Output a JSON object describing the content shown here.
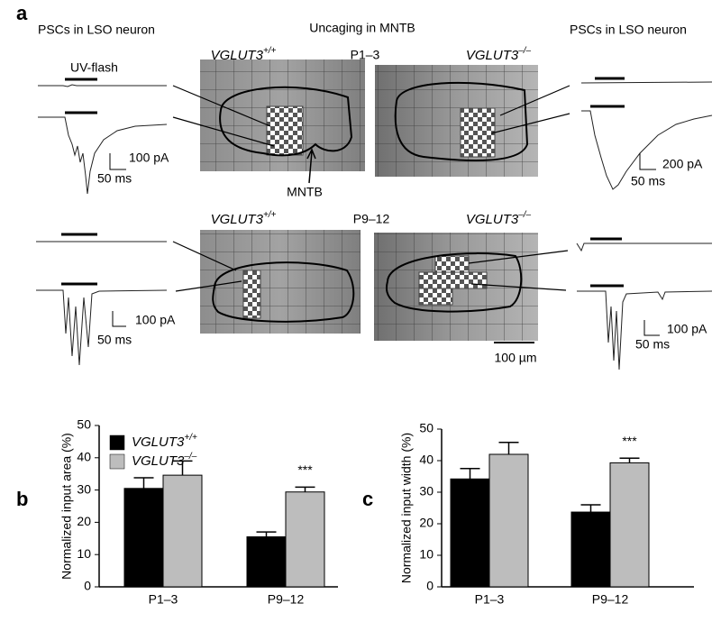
{
  "panel_a": {
    "label": "a",
    "left_title": "PSCs in LSO neuron",
    "center_title": "Uncaging in MNTB",
    "right_title": "PSCs in LSO neuron",
    "uv_flash": "UV-flash",
    "mntb": "MNTB",
    "scale_bar": "100 µm",
    "rows": [
      {
        "age": "P1–3",
        "wt": "VGLUT3+/+",
        "ko": "VGLUT3–/–",
        "left_scale": [
          "100 pA",
          "50 ms"
        ],
        "right_scale": [
          "200 pA",
          "50 ms"
        ]
      },
      {
        "age": "P9–12",
        "wt": "VGLUT3+/+",
        "ko": "VGLUT3–/–",
        "left_scale": [
          "100 pA",
          "50 ms"
        ],
        "right_scale": [
          "100 pA",
          "50 ms"
        ]
      }
    ]
  },
  "chart_data": [
    {
      "type": "bar",
      "label": "b",
      "ylabel": "Normalized input area (%)",
      "categories": [
        "P1–3",
        "P9–12"
      ],
      "series": [
        {
          "name": "VGLUT3+/+",
          "color": "#000000",
          "values": [
            30.5,
            15.5
          ],
          "errors": [
            3.3,
            1.5
          ]
        },
        {
          "name": "VGLUT3–/–",
          "color": "#bdbdbd",
          "values": [
            34.6,
            29.4
          ],
          "errors": [
            4.4,
            1.5
          ]
        }
      ],
      "ylim": [
        0,
        50
      ],
      "yticks": [
        0,
        10,
        20,
        30,
        40,
        50
      ],
      "annotation": "***",
      "legend": true
    },
    {
      "type": "bar",
      "label": "c",
      "ylabel": "Normalized input width (%)",
      "categories": [
        "P1–3",
        "P9–12"
      ],
      "series": [
        {
          "name": "VGLUT3+/+",
          "color": "#000000",
          "values": [
            34.2,
            23.7
          ],
          "errors": [
            3.3,
            2.3
          ]
        },
        {
          "name": "VGLUT3–/–",
          "color": "#bdbdbd",
          "values": [
            42.0,
            39.3
          ],
          "errors": [
            3.8,
            1.5
          ]
        }
      ],
      "ylim": [
        0,
        50
      ],
      "yticks": [
        0,
        10,
        20,
        30,
        40,
        50
      ],
      "annotation": "***",
      "legend": false
    }
  ]
}
